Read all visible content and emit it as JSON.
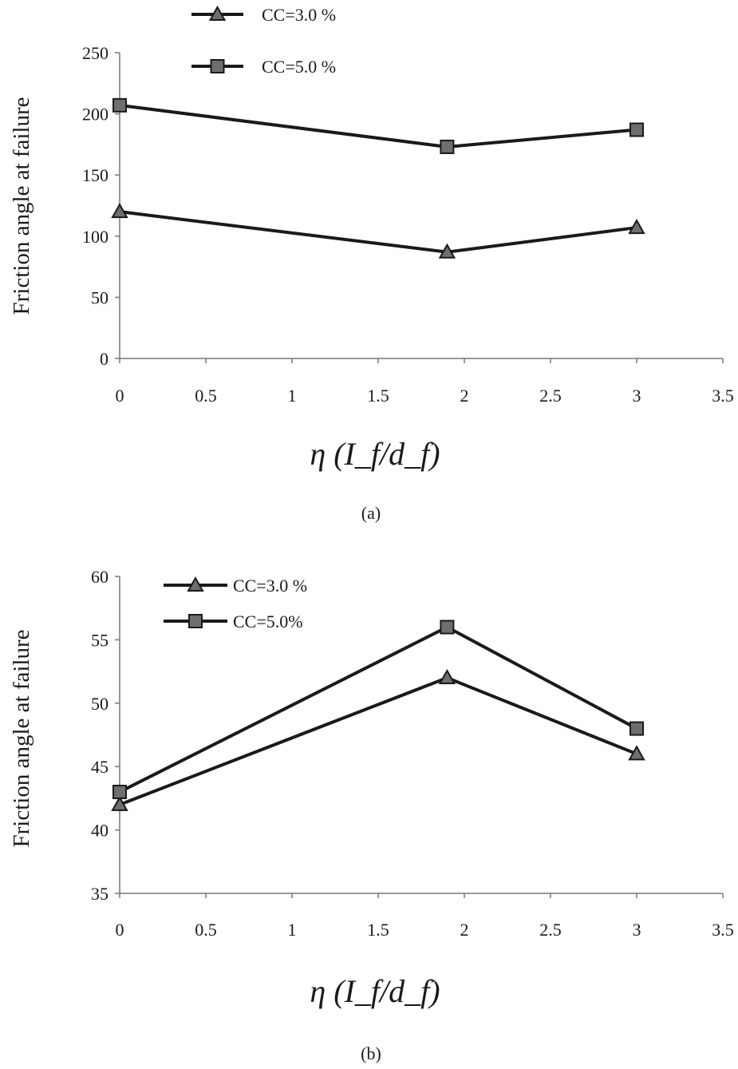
{
  "chart_data": [
    {
      "type": "line",
      "caption": "(a)",
      "xlabel": "η (I_f/d_f)",
      "xlabel_parts": {
        "eta": "η (",
        "I": "I",
        "f1": "f",
        "slash": "/",
        "d": "d",
        "f2": "f",
        "close": ")"
      },
      "ylabel": "Friction angle at failure",
      "xlim": [
        0,
        3.5
      ],
      "ylim": [
        0,
        250
      ],
      "xticks": [
        "0",
        "0.5",
        "1",
        "1.5",
        "2",
        "2.5",
        "3",
        "3.5"
      ],
      "yticks": [
        "0",
        "50",
        "100",
        "150",
        "200",
        "250"
      ],
      "legend_position": "top",
      "x": [
        0,
        1.9,
        3
      ],
      "series": [
        {
          "name": "CC=3.0 %",
          "marker": "triangle",
          "values": [
            120,
            87,
            107
          ]
        },
        {
          "name": "CC=5.0 %",
          "marker": "square",
          "values": [
            207,
            173,
            187
          ]
        }
      ]
    },
    {
      "type": "line",
      "caption": "(b)",
      "xlabel": "η (I_f/d_f)",
      "xlabel_parts": {
        "eta": "η (",
        "I": "I",
        "f1": "f",
        "slash": "/",
        "d": "d",
        "f2": "f",
        "close": ")"
      },
      "ylabel": "Friction angle at failure",
      "xlim": [
        0,
        3.5
      ],
      "ylim": [
        35,
        60
      ],
      "xticks": [
        "0",
        "0.5",
        "1",
        "1.5",
        "2",
        "2.5",
        "3",
        "3.5"
      ],
      "yticks": [
        "35",
        "40",
        "45",
        "50",
        "55",
        "60"
      ],
      "legend_position": "top-left",
      "x": [
        0,
        1.9,
        3
      ],
      "series": [
        {
          "name": "CC=3.0 %",
          "marker": "triangle",
          "values": [
            42,
            52,
            46
          ]
        },
        {
          "name": "CC=5.0%",
          "marker": "square",
          "values": [
            43,
            56,
            48
          ]
        }
      ]
    }
  ],
  "colors": {
    "line": "#1a1a1a",
    "marker_fill": "#6e6e6e"
  }
}
